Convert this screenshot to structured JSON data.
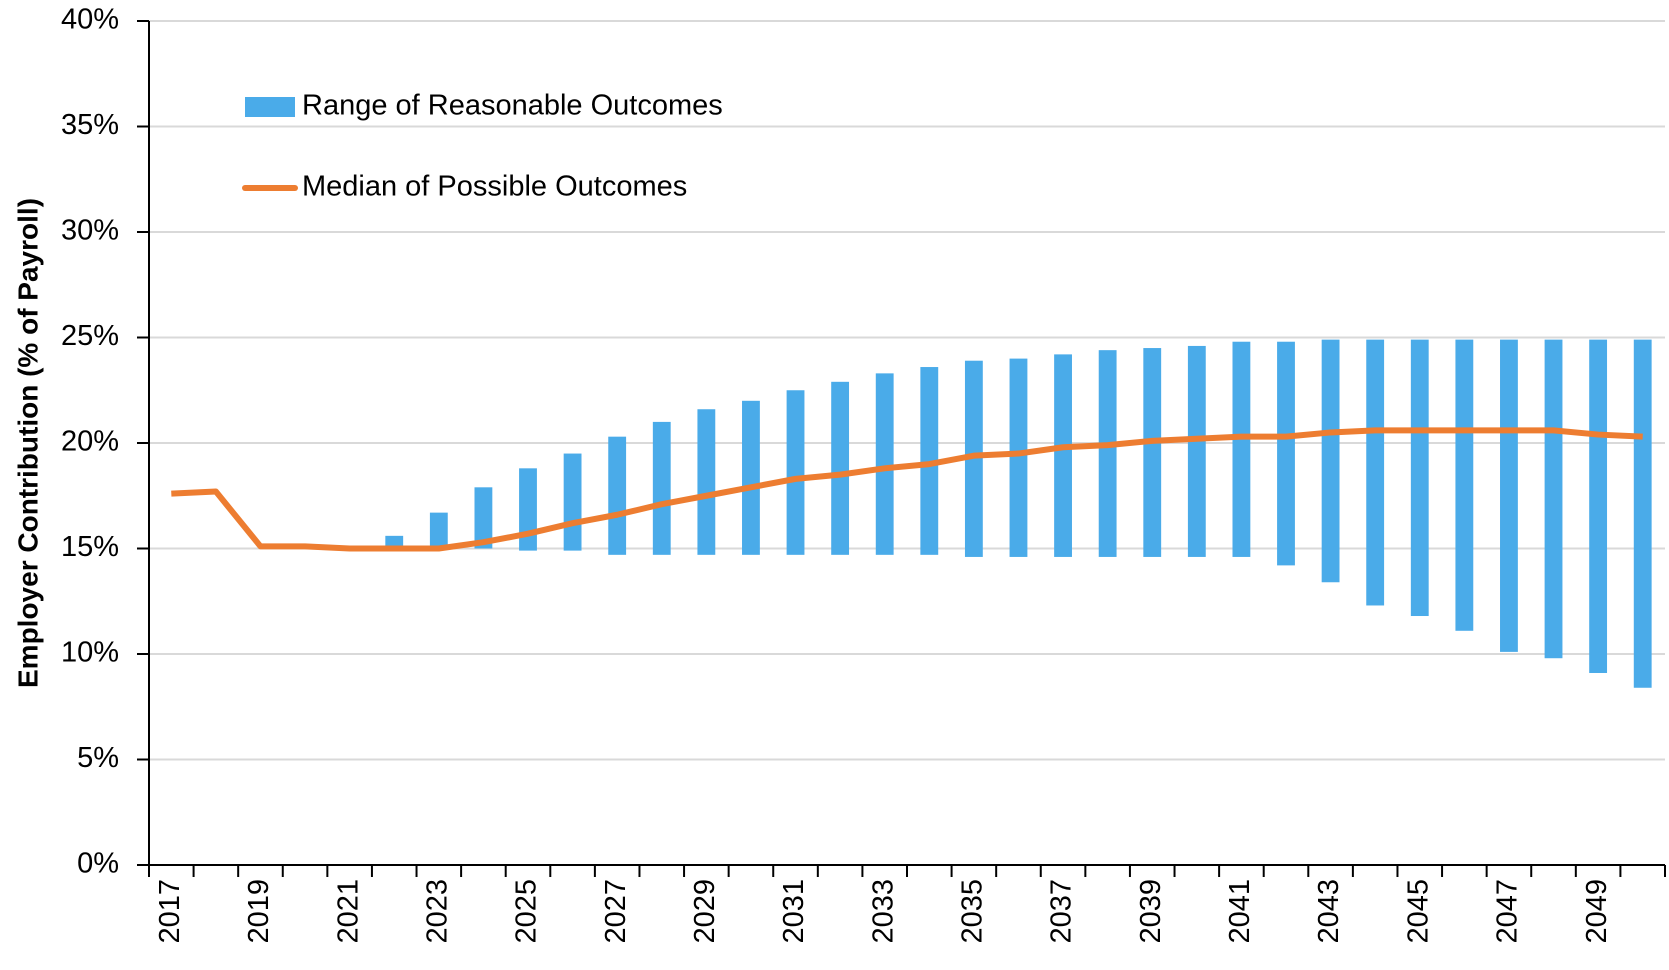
{
  "chart_data": {
    "type": "combo",
    "y_label": "Employer Contribution (% of Payroll)",
    "categories": [
      "2017",
      null,
      "2019",
      null,
      "2021",
      null,
      "2023",
      null,
      "2025",
      null,
      "2027",
      null,
      "2029",
      null,
      "2031",
      null,
      "2033",
      null,
      "2035",
      null,
      "2037",
      null,
      "2039",
      null,
      "2041",
      null,
      "2043",
      null,
      "2045",
      null,
      "2047",
      null,
      "2049",
      null
    ],
    "series": [
      {
        "name": "Range of Reasonable Outcomes",
        "type": "range",
        "color": "#4aabe9",
        "low": [
          null,
          null,
          null,
          null,
          null,
          15.0,
          15.0,
          15.0,
          14.9,
          14.9,
          14.7,
          14.7,
          14.7,
          14.7,
          14.7,
          14.7,
          14.7,
          14.7,
          14.6,
          14.6,
          14.6,
          14.6,
          14.6,
          14.6,
          14.6,
          14.2,
          13.4,
          12.3,
          11.8,
          11.1,
          10.1,
          9.8,
          9.1,
          8.4
        ],
        "high": [
          null,
          null,
          null,
          null,
          null,
          15.6,
          16.7,
          17.9,
          18.8,
          19.5,
          20.3,
          21.0,
          21.6,
          22.0,
          22.5,
          22.9,
          23.3,
          23.6,
          23.9,
          24.0,
          24.2,
          24.4,
          24.5,
          24.6,
          24.8,
          24.8,
          24.9,
          24.9,
          24.9,
          24.9,
          24.9,
          24.9,
          24.9,
          24.9
        ]
      },
      {
        "name": "Median of Possible Outcomes",
        "type": "line",
        "color": "#ed7d31",
        "values": [
          17.6,
          17.7,
          15.1,
          15.1,
          15.0,
          15.0,
          15.0,
          15.3,
          15.7,
          16.2,
          16.6,
          17.1,
          17.5,
          17.9,
          18.3,
          18.5,
          18.8,
          19.0,
          19.4,
          19.5,
          19.8,
          19.9,
          20.1,
          20.2,
          20.3,
          20.3,
          20.5,
          20.6,
          20.6,
          20.6,
          20.6,
          20.6,
          20.4,
          20.3
        ]
      }
    ],
    "ylim": [
      0,
      40
    ],
    "yticks": [
      {
        "value": 0,
        "label": "0%"
      },
      {
        "value": 5,
        "label": "5%"
      },
      {
        "value": 10,
        "label": "10%"
      },
      {
        "value": 15,
        "label": "15%"
      },
      {
        "value": 20,
        "label": "20%"
      },
      {
        "value": 25,
        "label": "25%"
      },
      {
        "value": 30,
        "label": "30%"
      },
      {
        "value": 35,
        "label": "35%"
      },
      {
        "value": 40,
        "label": "40%"
      }
    ],
    "grid": true,
    "legend": "upper left"
  }
}
